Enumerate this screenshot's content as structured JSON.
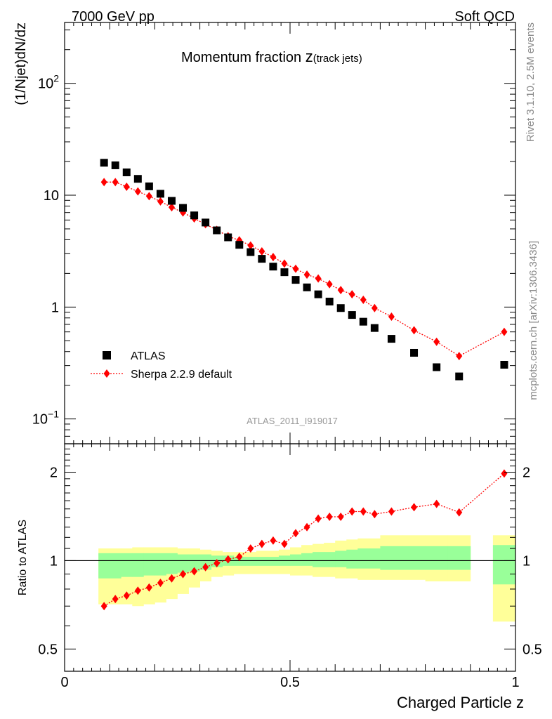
{
  "header": {
    "left": "7000 GeV pp",
    "right": "Soft QCD"
  },
  "side_labels": {
    "rivet": "Rivet 3.1.10,  2.5M events",
    "mcplots": "mcplots.cern.ch [arXiv:1306.3436]"
  },
  "colors": {
    "data": "#000000",
    "mc": "#ff0000",
    "band_inner": "#99ff99",
    "band_outer": "#ffff99"
  },
  "chart_data": [
    {
      "type": "scatter",
      "title_main": "Momentum fraction ",
      "title_var": "z",
      "title_sub": "(track jets)",
      "ylabel": "(1/Njet)dN/dz",
      "yscale": "log",
      "ylim": [
        0.06,
        350
      ],
      "xlim": [
        0,
        1
      ],
      "ytick_labels": [
        {
          "value": 100,
          "base": "10",
          "exp": "2"
        },
        {
          "value": 10,
          "base": "10",
          "exp": ""
        },
        {
          "value": 1,
          "base": "1",
          "exp": ""
        },
        {
          "value": 0.1,
          "base": "10",
          "exp": "−1"
        }
      ],
      "legend_placement": "lower-left",
      "analysis_label": "ATLAS_2011_I919017",
      "series": [
        {
          "name": "ATLAS",
          "marker": "square",
          "x": [
            0.0875,
            0.1125,
            0.1375,
            0.1625,
            0.1875,
            0.2125,
            0.2375,
            0.2625,
            0.2875,
            0.3125,
            0.3375,
            0.3625,
            0.3875,
            0.4125,
            0.4375,
            0.4625,
            0.4875,
            0.5125,
            0.5375,
            0.5625,
            0.5875,
            0.6125,
            0.6375,
            0.6625,
            0.6875,
            0.725,
            0.775,
            0.825,
            0.875,
            0.975
          ],
          "y": [
            19.5,
            18.5,
            16.0,
            14.0,
            12.0,
            10.3,
            8.9,
            7.7,
            6.6,
            5.7,
            4.85,
            4.2,
            3.6,
            3.1,
            2.7,
            2.3,
            2.05,
            1.75,
            1.5,
            1.3,
            1.12,
            0.98,
            0.85,
            0.74,
            0.65,
            0.52,
            0.39,
            0.29,
            0.24,
            0.305
          ]
        },
        {
          "name": "Sherpa 2.2.9 default",
          "marker": "diamond",
          "line": "dotted",
          "x": [
            0.0875,
            0.1125,
            0.1375,
            0.1625,
            0.1875,
            0.2125,
            0.2375,
            0.2625,
            0.2875,
            0.3125,
            0.3375,
            0.3625,
            0.3875,
            0.4125,
            0.4375,
            0.4625,
            0.4875,
            0.5125,
            0.5375,
            0.5625,
            0.5875,
            0.6125,
            0.6375,
            0.6625,
            0.6875,
            0.725,
            0.775,
            0.825,
            0.875,
            0.975
          ],
          "y": [
            13.1,
            13.1,
            11.9,
            10.8,
            9.8,
            8.8,
            7.8,
            7.0,
            6.2,
            5.5,
            4.9,
            4.3,
            3.95,
            3.55,
            3.15,
            2.8,
            2.45,
            2.2,
            1.95,
            1.8,
            1.6,
            1.42,
            1.3,
            1.16,
            0.98,
            0.82,
            0.62,
            0.49,
            0.365,
            0.6
          ]
        }
      ]
    },
    {
      "type": "scatter",
      "ylabel": "Ratio to ATLAS",
      "xlabel": "Charged Particle z",
      "yscale": "log",
      "ylim": [
        0.42,
        2.5
      ],
      "xlim": [
        0,
        1
      ],
      "ytick_labels": [
        {
          "value": 2,
          "label": "2"
        },
        {
          "value": 1,
          "label": "1"
        },
        {
          "value": 0.5,
          "label": "0.5"
        }
      ],
      "xtick_labels": [
        {
          "value": 0,
          "label": "0"
        },
        {
          "value": 0.5,
          "label": "0.5"
        },
        {
          "value": 1,
          "label": "1"
        }
      ],
      "reference_line": 1,
      "uncertainty_bands": {
        "x_edges": [
          [
            0.075,
            0.1
          ],
          [
            0.1,
            0.125
          ],
          [
            0.125,
            0.15
          ],
          [
            0.15,
            0.175
          ],
          [
            0.175,
            0.2
          ],
          [
            0.2,
            0.225
          ],
          [
            0.225,
            0.25
          ],
          [
            0.25,
            0.275
          ],
          [
            0.275,
            0.3
          ],
          [
            0.3,
            0.325
          ],
          [
            0.325,
            0.35
          ],
          [
            0.35,
            0.375
          ],
          [
            0.375,
            0.4
          ],
          [
            0.4,
            0.425
          ],
          [
            0.425,
            0.45
          ],
          [
            0.45,
            0.475
          ],
          [
            0.475,
            0.5
          ],
          [
            0.5,
            0.525
          ],
          [
            0.525,
            0.55
          ],
          [
            0.55,
            0.575
          ],
          [
            0.575,
            0.6
          ],
          [
            0.6,
            0.625
          ],
          [
            0.625,
            0.65
          ],
          [
            0.65,
            0.675
          ],
          [
            0.675,
            0.7
          ],
          [
            0.7,
            0.75
          ],
          [
            0.75,
            0.8
          ],
          [
            0.8,
            0.85
          ],
          [
            0.85,
            0.9
          ],
          [
            0.95,
            1.0
          ]
        ],
        "inner_up": [
          1.06,
          1.06,
          1.06,
          1.06,
          1.06,
          1.06,
          1.06,
          1.05,
          1.05,
          1.05,
          1.04,
          1.04,
          1.03,
          1.03,
          1.03,
          1.03,
          1.04,
          1.05,
          1.06,
          1.07,
          1.07,
          1.08,
          1.09,
          1.1,
          1.1,
          1.12,
          1.12,
          1.12,
          1.12,
          1.13
        ],
        "inner_down": [
          0.87,
          0.87,
          0.88,
          0.88,
          0.89,
          0.89,
          0.9,
          0.91,
          0.92,
          0.93,
          0.95,
          0.96,
          0.96,
          0.96,
          0.96,
          0.96,
          0.96,
          0.96,
          0.96,
          0.95,
          0.95,
          0.95,
          0.94,
          0.94,
          0.94,
          0.93,
          0.93,
          0.93,
          0.93,
          0.83
        ],
        "outer_up": [
          1.1,
          1.1,
          1.1,
          1.11,
          1.11,
          1.11,
          1.11,
          1.1,
          1.1,
          1.09,
          1.08,
          1.07,
          1.07,
          1.07,
          1.08,
          1.08,
          1.09,
          1.11,
          1.13,
          1.14,
          1.15,
          1.17,
          1.18,
          1.19,
          1.19,
          1.22,
          1.22,
          1.22,
          1.22,
          1.22
        ],
        "outer_down": [
          0.71,
          0.71,
          0.71,
          0.7,
          0.71,
          0.72,
          0.74,
          0.77,
          0.81,
          0.85,
          0.88,
          0.89,
          0.9,
          0.9,
          0.9,
          0.9,
          0.9,
          0.89,
          0.89,
          0.88,
          0.88,
          0.87,
          0.87,
          0.86,
          0.86,
          0.86,
          0.86,
          0.85,
          0.85,
          0.62
        ]
      },
      "series": [
        {
          "name": "Sherpa 2.2.9 default",
          "marker": "diamond",
          "line": "dotted",
          "x": [
            0.0875,
            0.1125,
            0.1375,
            0.1625,
            0.1875,
            0.2125,
            0.2375,
            0.2625,
            0.2875,
            0.3125,
            0.3375,
            0.3625,
            0.3875,
            0.4125,
            0.4375,
            0.4625,
            0.4875,
            0.5125,
            0.5375,
            0.5625,
            0.5875,
            0.6125,
            0.6375,
            0.6625,
            0.6875,
            0.725,
            0.775,
            0.825,
            0.875,
            0.975
          ],
          "y": [
            0.7,
            0.74,
            0.76,
            0.79,
            0.81,
            0.84,
            0.87,
            0.9,
            0.92,
            0.95,
            0.98,
            1.01,
            1.03,
            1.1,
            1.14,
            1.17,
            1.14,
            1.24,
            1.3,
            1.39,
            1.41,
            1.41,
            1.47,
            1.47,
            1.44,
            1.47,
            1.52,
            1.56,
            1.46,
            1.98
          ]
        }
      ]
    }
  ]
}
